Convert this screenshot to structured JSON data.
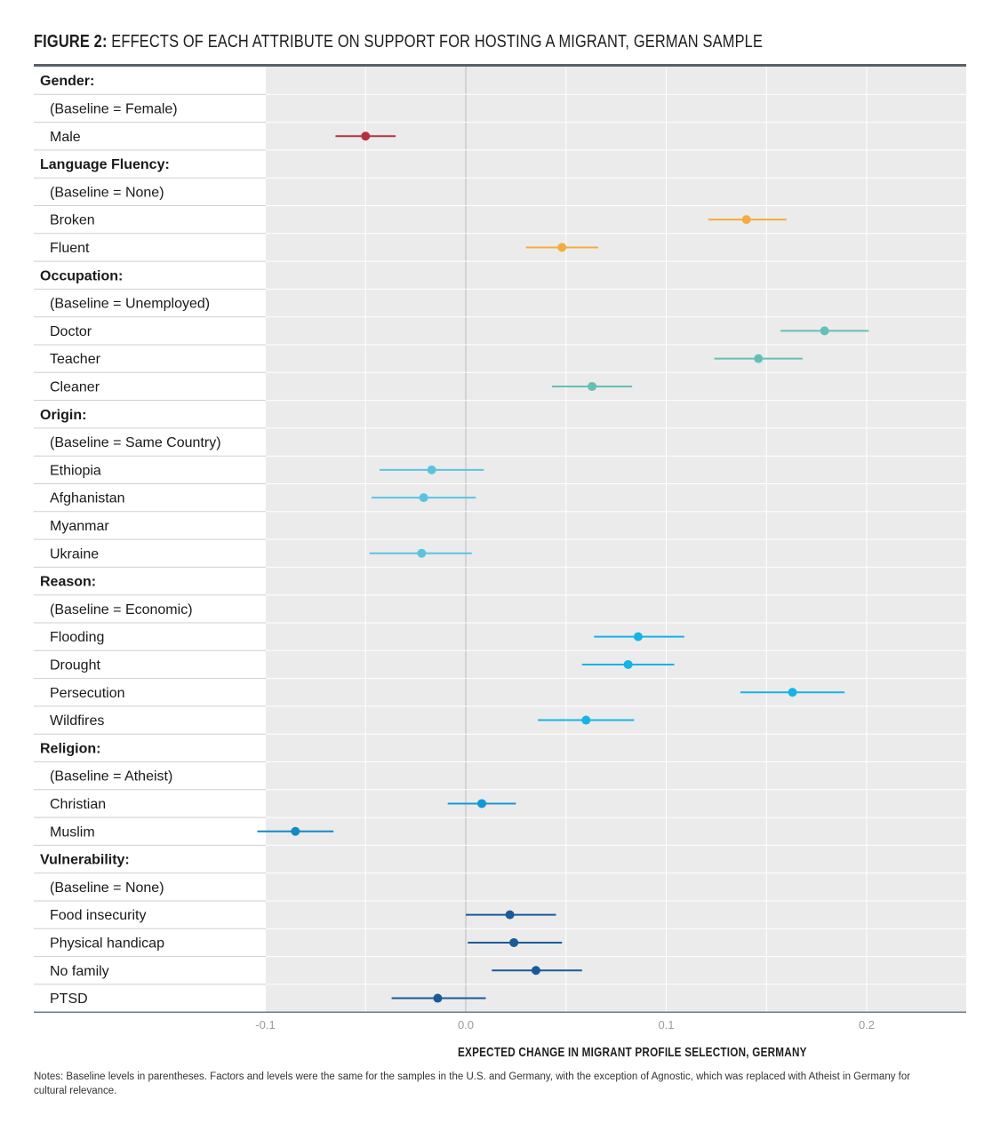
{
  "figure": {
    "label": "FIGURE 2:",
    "title": "EFFECTS OF EACH ATTRIBUTE ON SUPPORT FOR HOSTING A MIGRANT, GERMAN SAMPLE",
    "notes": "Notes: Baseline levels in parentheses. Factors and levels were the same for the samples in the U.S. and Germany, with the exception of Agnostic, which was replaced with Atheist in Germany for cultural relevance."
  },
  "chart_data": {
    "type": "scatter",
    "subtype": "coefficient-plot-with-confidence-intervals",
    "title": "EFFECTS OF EACH ATTRIBUTE ON SUPPORT FOR HOSTING A MIGRANT, GERMAN SAMPLE",
    "xlabel": "EXPECTED CHANGE IN MIGRANT PROFILE SELECTION, GERMANY",
    "xlim": [
      -0.1,
      0.25
    ],
    "xticks": [
      -0.1,
      0.0,
      0.1,
      0.2
    ],
    "xtick_labels": [
      "-0.1",
      "0.0",
      "0.1",
      "0.2"
    ],
    "reference_line": 0.0,
    "grid": true,
    "rows": [
      {
        "label": "Gender:",
        "kind": "group"
      },
      {
        "label": "(Baseline = Female)",
        "kind": "baseline"
      },
      {
        "label": "Male",
        "kind": "level",
        "estimate": -0.05,
        "lower": -0.065,
        "upper": -0.035,
        "color": "#b5313e"
      },
      {
        "label": "Language Fluency:",
        "kind": "group"
      },
      {
        "label": "(Baseline = None)",
        "kind": "baseline"
      },
      {
        "label": "Broken",
        "kind": "level",
        "estimate": 0.14,
        "lower": 0.121,
        "upper": 0.16,
        "color": "#f4ac3d"
      },
      {
        "label": "Fluent",
        "kind": "level",
        "estimate": 0.048,
        "lower": 0.03,
        "upper": 0.066,
        "color": "#f4ac3d"
      },
      {
        "label": "Occupation:",
        "kind": "group"
      },
      {
        "label": "(Baseline = Unemployed)",
        "kind": "baseline"
      },
      {
        "label": "Doctor",
        "kind": "level",
        "estimate": 0.179,
        "lower": 0.157,
        "upper": 0.201,
        "color": "#63c0b4"
      },
      {
        "label": "Teacher",
        "kind": "level",
        "estimate": 0.146,
        "lower": 0.124,
        "upper": 0.168,
        "color": "#63c0b4"
      },
      {
        "label": "Cleaner",
        "kind": "level",
        "estimate": 0.063,
        "lower": 0.043,
        "upper": 0.083,
        "color": "#63c0b4"
      },
      {
        "label": "Origin:",
        "kind": "group"
      },
      {
        "label": "(Baseline = Same Country)",
        "kind": "baseline"
      },
      {
        "label": "Ethiopia",
        "kind": "level",
        "estimate": -0.017,
        "lower": -0.043,
        "upper": 0.009,
        "color": "#5bc3df"
      },
      {
        "label": "Afghanistan",
        "kind": "level",
        "estimate": -0.021,
        "lower": -0.047,
        "upper": 0.005,
        "color": "#5bc3df"
      },
      {
        "label": "Myanmar",
        "kind": "level"
      },
      {
        "label": "Ukraine",
        "kind": "level",
        "estimate": -0.022,
        "lower": -0.048,
        "upper": 0.003,
        "color": "#5bc3df"
      },
      {
        "label": "Reason:",
        "kind": "group"
      },
      {
        "label": "(Baseline = Economic)",
        "kind": "baseline"
      },
      {
        "label": "Flooding",
        "kind": "level",
        "estimate": 0.086,
        "lower": 0.064,
        "upper": 0.109,
        "color": "#16b3e6"
      },
      {
        "label": "Drought",
        "kind": "level",
        "estimate": 0.081,
        "lower": 0.058,
        "upper": 0.104,
        "color": "#16b3e6"
      },
      {
        "label": "Persecution",
        "kind": "level",
        "estimate": 0.163,
        "lower": 0.137,
        "upper": 0.189,
        "color": "#16b3e6"
      },
      {
        "label": "Wildfires",
        "kind": "level",
        "estimate": 0.06,
        "lower": 0.036,
        "upper": 0.084,
        "color": "#16b3e6"
      },
      {
        "label": "Religion:",
        "kind": "group"
      },
      {
        "label": "(Baseline = Atheist)",
        "kind": "baseline"
      },
      {
        "label": "Christian",
        "kind": "level",
        "estimate": 0.008,
        "lower": -0.009,
        "upper": 0.025,
        "color": "#1199d6"
      },
      {
        "label": "Muslim",
        "kind": "level",
        "estimate": -0.085,
        "lower": -0.104,
        "upper": -0.066,
        "color": "#1589c4"
      },
      {
        "label": "Vulnerability:",
        "kind": "group"
      },
      {
        "label": "(Baseline = None)",
        "kind": "baseline"
      },
      {
        "label": "Food insecurity",
        "kind": "level",
        "estimate": 0.022,
        "lower": 0.0,
        "upper": 0.045,
        "color": "#1a5a98"
      },
      {
        "label": "Physical handicap",
        "kind": "level",
        "estimate": 0.024,
        "lower": 0.001,
        "upper": 0.048,
        "color": "#1a5a98"
      },
      {
        "label": "No family",
        "kind": "level",
        "estimate": 0.035,
        "lower": 0.013,
        "upper": 0.058,
        "color": "#1a5a98"
      },
      {
        "label": "PTSD",
        "kind": "level",
        "estimate": -0.014,
        "lower": -0.037,
        "upper": 0.01,
        "color": "#1a5a98"
      }
    ]
  }
}
